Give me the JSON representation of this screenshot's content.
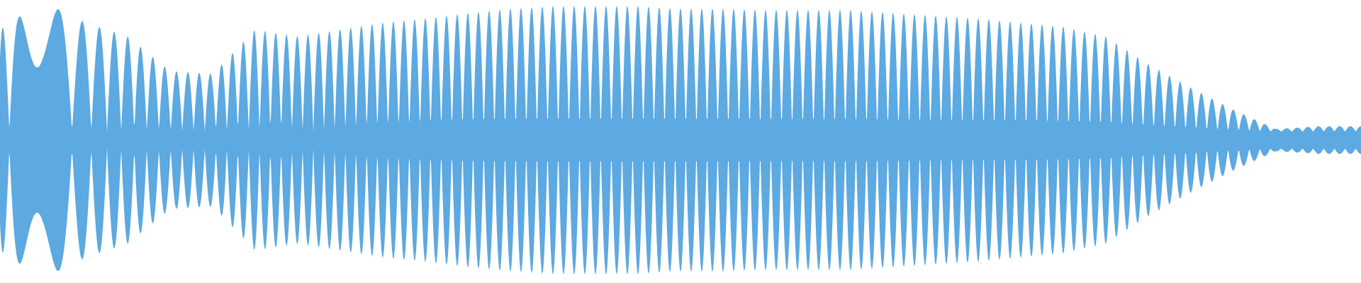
{
  "waveform": {
    "color": "#5DA9E1",
    "background": "#FFFFFF",
    "envelope_top": [
      0.8,
      1.0,
      0.85,
      0.75,
      0.5,
      0.48,
      0.8,
      0.75,
      0.8,
      0.85,
      0.88,
      0.92,
      0.95,
      0.97,
      0.97,
      0.97,
      0.95,
      0.95,
      0.94,
      0.94,
      0.94,
      0.92,
      0.9,
      0.88,
      0.85,
      0.82,
      0.75,
      0.55,
      0.38,
      0.22,
      0.08,
      0.1,
      0.1
    ],
    "envelope_bottom": [
      0.8,
      1.0,
      0.85,
      0.75,
      0.5,
      0.48,
      0.8,
      0.75,
      0.8,
      0.85,
      0.88,
      0.92,
      0.95,
      0.97,
      0.97,
      0.97,
      0.95,
      0.95,
      0.94,
      0.94,
      0.94,
      0.92,
      0.9,
      0.88,
      0.85,
      0.82,
      0.75,
      0.55,
      0.38,
      0.22,
      0.08,
      0.1,
      0.1
    ],
    "cycles": 64
  }
}
